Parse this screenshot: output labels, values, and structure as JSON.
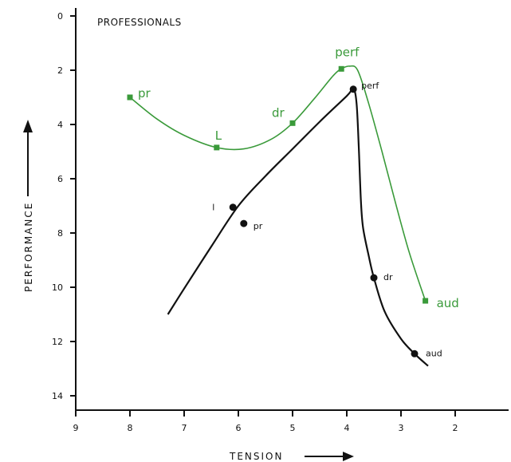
{
  "chart_data": {
    "type": "line",
    "title": "PROFESSIONALS",
    "xlabel": "TENSION",
    "ylabel": "PERFORMANCE",
    "x_ticks": [
      "9",
      "8",
      "7",
      "6",
      "5",
      "4",
      "3",
      "2"
    ],
    "y_ticks": [
      "0",
      "2",
      "4",
      "6",
      "8",
      "10",
      "12",
      "14"
    ],
    "xlim": [
      9,
      1.8
    ],
    "ylim": [
      0,
      14
    ],
    "x_reversed": true,
    "y_reversed": true,
    "colors": {
      "green": "#3a9a3a",
      "black": "#111111"
    },
    "series": [
      {
        "color": "#3a9a3a",
        "points": [
          {
            "x": 8.0,
            "y": 3.0,
            "label": "pr"
          },
          {
            "x": 6.4,
            "y": 4.85,
            "label": "L"
          },
          {
            "x": 5.0,
            "y": 3.95,
            "label": "dr"
          },
          {
            "x": 4.1,
            "y": 1.95,
            "label": "perf"
          },
          {
            "x": 2.55,
            "y": 10.5,
            "label": "aud"
          }
        ],
        "curve": [
          [
            8.0,
            3.0
          ],
          [
            7.5,
            3.8
          ],
          [
            7.0,
            4.4
          ],
          [
            6.4,
            4.85
          ],
          [
            5.9,
            4.9
          ],
          [
            5.4,
            4.55
          ],
          [
            5.0,
            3.95
          ],
          [
            4.6,
            3.05
          ],
          [
            4.25,
            2.2
          ],
          [
            4.1,
            1.95
          ],
          [
            3.95,
            1.85
          ],
          [
            3.8,
            2.0
          ],
          [
            3.6,
            3.2
          ],
          [
            3.35,
            5.0
          ],
          [
            3.1,
            6.9
          ],
          [
            2.85,
            8.7
          ],
          [
            2.55,
            10.5
          ]
        ]
      },
      {
        "color": "#111111",
        "points": [
          {
            "x": 6.1,
            "y": 7.05,
            "label": "l"
          },
          {
            "x": 5.9,
            "y": 7.65,
            "label": "pr"
          },
          {
            "x": 3.88,
            "y": 2.7,
            "label": "perf"
          },
          {
            "x": 3.5,
            "y": 9.65,
            "label": "dr"
          },
          {
            "x": 2.75,
            "y": 12.45,
            "label": "aud"
          }
        ],
        "curve": [
          [
            7.3,
            11.0
          ],
          [
            7.0,
            10.05
          ],
          [
            6.5,
            8.5
          ],
          [
            6.0,
            7.0
          ],
          [
            5.5,
            5.9
          ],
          [
            5.0,
            4.9
          ],
          [
            4.5,
            3.9
          ],
          [
            4.0,
            2.95
          ],
          [
            3.88,
            2.7
          ],
          [
            3.82,
            3.2
          ],
          [
            3.78,
            4.8
          ],
          [
            3.74,
            6.8
          ],
          [
            3.7,
            7.8
          ],
          [
            3.6,
            8.8
          ],
          [
            3.5,
            9.65
          ],
          [
            3.3,
            10.9
          ],
          [
            3.0,
            11.9
          ],
          [
            2.75,
            12.45
          ],
          [
            2.5,
            12.9
          ]
        ]
      }
    ]
  }
}
